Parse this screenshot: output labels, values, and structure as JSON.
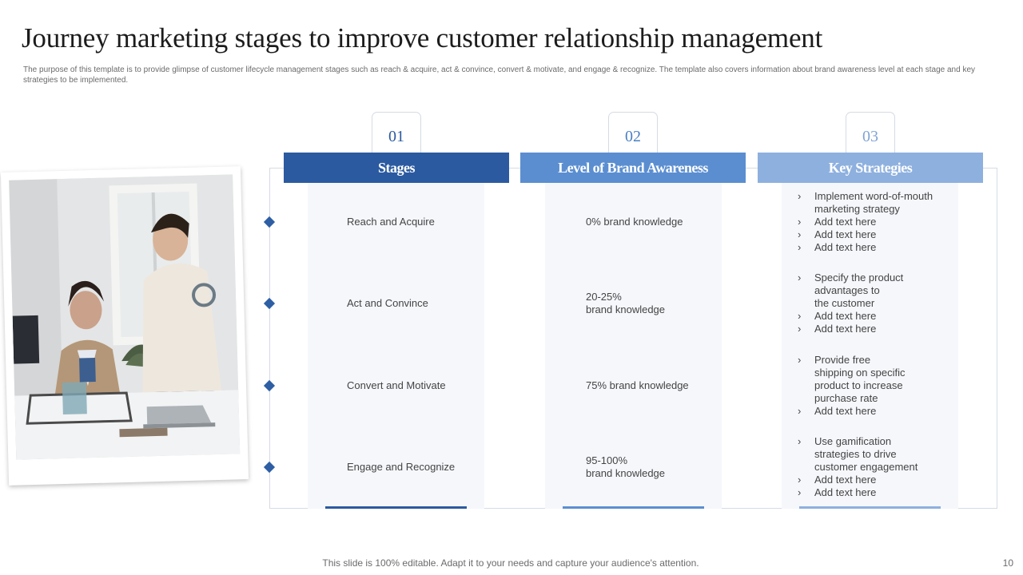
{
  "slide": {
    "title": "Journey marketing stages to improve customer relationship management",
    "subtitle": "The purpose of this template is to provide glimpse of customer lifecycle management stages such as reach & acquire, act & convince, convert & motivate, and engage & recognize. The template also covers information about brand awareness level at each stage and key strategies to be implemented.",
    "footer": "This slide is 100% editable. Adapt it to your needs and capture your audience's attention.",
    "page_number": "10"
  },
  "colors": {
    "col1": "#2b5aa0",
    "col2": "#5b8ed0",
    "col3": "#8eb0de",
    "diamond": "#2e5ea4"
  },
  "columns": [
    {
      "number": "01",
      "heading": "Stages"
    },
    {
      "number": "02",
      "heading": "Level of Brand Awareness"
    },
    {
      "number": "03",
      "heading": "Key Strategies"
    }
  ],
  "rows": [
    {
      "stage": "Reach and Acquire",
      "awareness": "0% brand knowledge",
      "strategies": [
        "Implement word-of-mouth\nmarketing strategy",
        "Add text here",
        "Add text here",
        "Add text here"
      ]
    },
    {
      "stage": "Act and Convince",
      "awareness": "20-25%\nbrand knowledge",
      "strategies": [
        "Specify the product\nadvantages  to\nthe customer",
        "Add text here",
        "Add text here"
      ]
    },
    {
      "stage": "Convert  and Motivate",
      "awareness": "75% brand  knowledge",
      "strategies": [
        "Provide  free\nshipping on specific\nproduct to increase\npurchase rate",
        "Add text here"
      ]
    },
    {
      "stage": "Engage and Recognize",
      "awareness": "95-100%\nbrand knowledge",
      "strategies": [
        "Use gamification\nstrategies to drive\ncustomer engagement",
        "Add text here",
        "Add text here"
      ]
    }
  ]
}
